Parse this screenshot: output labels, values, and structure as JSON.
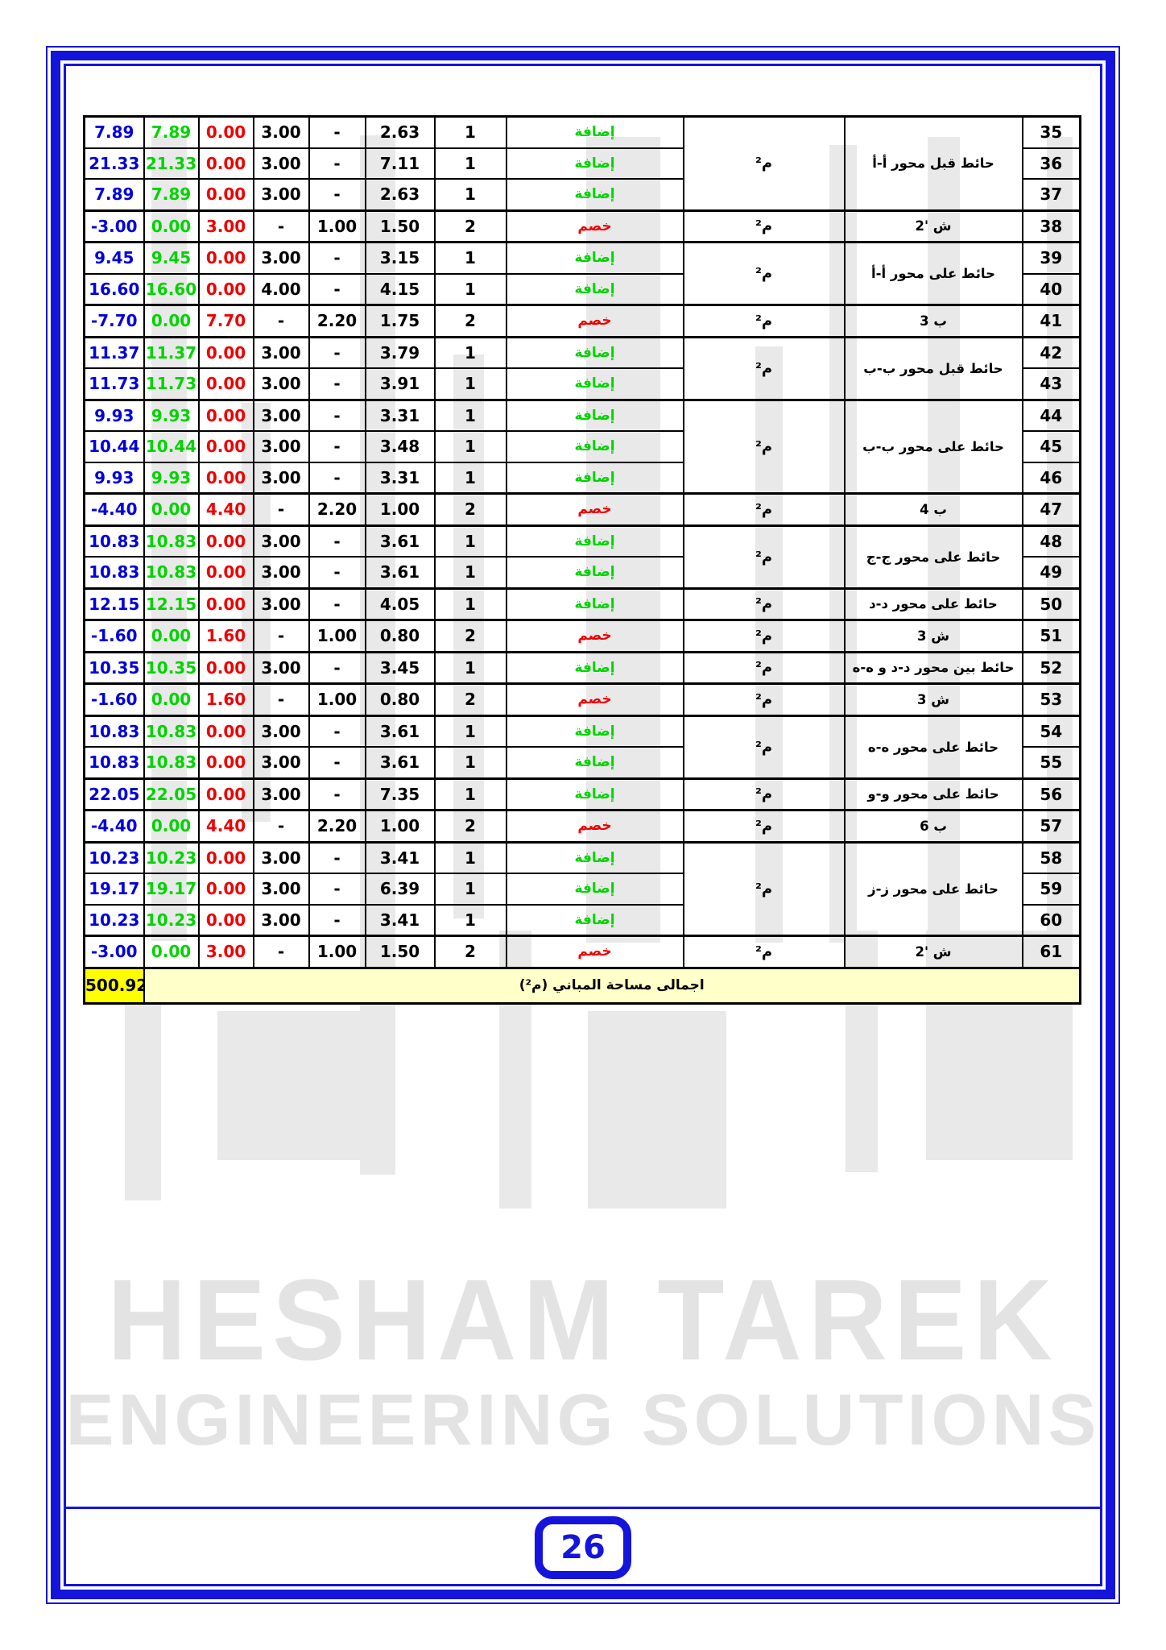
{
  "page": {
    "number": "26"
  },
  "watermark": {
    "line1": "HESHAM TAREK",
    "line2": "ENGINEERING SOLUTIONS"
  },
  "colors": {
    "frame_blue": "#1414dc",
    "net_blue": "#0000dd",
    "addition_green": "#00d400",
    "deduction_red": "#ee0000",
    "total_value_yellow": "#ffff00",
    "total_label_yellow": "#ffffc9",
    "watermark_gray": "#e9e9e9"
  },
  "table": {
    "unit_label": "م²",
    "total": {
      "value": "500.92",
      "label": "اجمالى مساحة المباني (م²)"
    },
    "rows": [
      {
        "no": "35",
        "net": "7.89",
        "add": "7.89",
        "ded": "0.00",
        "height": "3.00",
        "width": "-",
        "length": "2.63",
        "count": "1",
        "type": "إضافة",
        "type_kind": "add",
        "desc": "حائط قبل محور أ-أ",
        "span": 3
      },
      {
        "no": "36",
        "net": "21.33",
        "add": "21.33",
        "ded": "0.00",
        "height": "3.00",
        "width": "-",
        "length": "7.11",
        "count": "1",
        "type": "إضافة",
        "type_kind": "add"
      },
      {
        "no": "37",
        "net": "7.89",
        "add": "7.89",
        "ded": "0.00",
        "height": "3.00",
        "width": "-",
        "length": "2.63",
        "count": "1",
        "type": "إضافة",
        "type_kind": "add"
      },
      {
        "no": "38",
        "net": "-3.00",
        "add": "0.00",
        "ded": "3.00",
        "height": "-",
        "width": "1.00",
        "length": "1.50",
        "count": "2",
        "type": "خصم",
        "type_kind": "ded",
        "desc": "ش '2",
        "span": 1,
        "group_start": true
      },
      {
        "no": "39",
        "net": "9.45",
        "add": "9.45",
        "ded": "0.00",
        "height": "3.00",
        "width": "-",
        "length": "3.15",
        "count": "1",
        "type": "إضافة",
        "type_kind": "add",
        "desc": "حائط على محور أ-أ",
        "span": 2,
        "group_start": true
      },
      {
        "no": "40",
        "net": "16.60",
        "add": "16.60",
        "ded": "0.00",
        "height": "4.00",
        "width": "-",
        "length": "4.15",
        "count": "1",
        "type": "إضافة",
        "type_kind": "add"
      },
      {
        "no": "41",
        "net": "-7.70",
        "add": "0.00",
        "ded": "7.70",
        "height": "-",
        "width": "2.20",
        "length": "1.75",
        "count": "2",
        "type": "خصم",
        "type_kind": "ded",
        "desc": "ب 3",
        "span": 1,
        "group_start": true
      },
      {
        "no": "42",
        "net": "11.37",
        "add": "11.37",
        "ded": "0.00",
        "height": "3.00",
        "width": "-",
        "length": "3.79",
        "count": "1",
        "type": "إضافة",
        "type_kind": "add",
        "desc": "حائط قبل محور ب-ب",
        "span": 2,
        "group_start": true
      },
      {
        "no": "43",
        "net": "11.73",
        "add": "11.73",
        "ded": "0.00",
        "height": "3.00",
        "width": "-",
        "length": "3.91",
        "count": "1",
        "type": "إضافة",
        "type_kind": "add"
      },
      {
        "no": "44",
        "net": "9.93",
        "add": "9.93",
        "ded": "0.00",
        "height": "3.00",
        "width": "-",
        "length": "3.31",
        "count": "1",
        "type": "إضافة",
        "type_kind": "add",
        "desc": "حائط على محور ب-ب",
        "span": 3,
        "group_start": true
      },
      {
        "no": "45",
        "net": "10.44",
        "add": "10.44",
        "ded": "0.00",
        "height": "3.00",
        "width": "-",
        "length": "3.48",
        "count": "1",
        "type": "إضافة",
        "type_kind": "add"
      },
      {
        "no": "46",
        "net": "9.93",
        "add": "9.93",
        "ded": "0.00",
        "height": "3.00",
        "width": "-",
        "length": "3.31",
        "count": "1",
        "type": "إضافة",
        "type_kind": "add"
      },
      {
        "no": "47",
        "net": "-4.40",
        "add": "0.00",
        "ded": "4.40",
        "height": "-",
        "width": "2.20",
        "length": "1.00",
        "count": "2",
        "type": "خصم",
        "type_kind": "ded",
        "desc": "ب 4",
        "span": 1,
        "group_start": true
      },
      {
        "no": "48",
        "net": "10.83",
        "add": "10.83",
        "ded": "0.00",
        "height": "3.00",
        "width": "-",
        "length": "3.61",
        "count": "1",
        "type": "إضافة",
        "type_kind": "add",
        "desc": "حائط على محور ج-ج",
        "span": 2,
        "group_start": true
      },
      {
        "no": "49",
        "net": "10.83",
        "add": "10.83",
        "ded": "0.00",
        "height": "3.00",
        "width": "-",
        "length": "3.61",
        "count": "1",
        "type": "إضافة",
        "type_kind": "add"
      },
      {
        "no": "50",
        "net": "12.15",
        "add": "12.15",
        "ded": "0.00",
        "height": "3.00",
        "width": "-",
        "length": "4.05",
        "count": "1",
        "type": "إضافة",
        "type_kind": "add",
        "desc": "حائط على محور د-د",
        "span": 1,
        "group_start": true
      },
      {
        "no": "51",
        "net": "-1.60",
        "add": "0.00",
        "ded": "1.60",
        "height": "-",
        "width": "1.00",
        "length": "0.80",
        "count": "2",
        "type": "خصم",
        "type_kind": "ded",
        "desc": "ش 3",
        "span": 1,
        "group_start": true
      },
      {
        "no": "52",
        "net": "10.35",
        "add": "10.35",
        "ded": "0.00",
        "height": "3.00",
        "width": "-",
        "length": "3.45",
        "count": "1",
        "type": "إضافة",
        "type_kind": "add",
        "desc": "حائط بين محور د-د و ه-ه",
        "span": 1,
        "group_start": true
      },
      {
        "no": "53",
        "net": "-1.60",
        "add": "0.00",
        "ded": "1.60",
        "height": "-",
        "width": "1.00",
        "length": "0.80",
        "count": "2",
        "type": "خصم",
        "type_kind": "ded",
        "desc": "ش 3",
        "span": 1,
        "group_start": true
      },
      {
        "no": "54",
        "net": "10.83",
        "add": "10.83",
        "ded": "0.00",
        "height": "3.00",
        "width": "-",
        "length": "3.61",
        "count": "1",
        "type": "إضافة",
        "type_kind": "add",
        "desc": "حائط على محور ه-ه",
        "span": 2,
        "group_start": true
      },
      {
        "no": "55",
        "net": "10.83",
        "add": "10.83",
        "ded": "0.00",
        "height": "3.00",
        "width": "-",
        "length": "3.61",
        "count": "1",
        "type": "إضافة",
        "type_kind": "add"
      },
      {
        "no": "56",
        "net": "22.05",
        "add": "22.05",
        "ded": "0.00",
        "height": "3.00",
        "width": "-",
        "length": "7.35",
        "count": "1",
        "type": "إضافة",
        "type_kind": "add",
        "desc": "حائط على محور و-و",
        "span": 1,
        "group_start": true
      },
      {
        "no": "57",
        "net": "-4.40",
        "add": "0.00",
        "ded": "4.40",
        "height": "-",
        "width": "2.20",
        "length": "1.00",
        "count": "2",
        "type": "خصم",
        "type_kind": "ded",
        "desc": "ب 6",
        "span": 1,
        "group_start": true
      },
      {
        "no": "58",
        "net": "10.23",
        "add": "10.23",
        "ded": "0.00",
        "height": "3.00",
        "width": "-",
        "length": "3.41",
        "count": "1",
        "type": "إضافة",
        "type_kind": "add",
        "desc": "حائط على محور ز-ز",
        "span": 3,
        "group_start": true
      },
      {
        "no": "59",
        "net": "19.17",
        "add": "19.17",
        "ded": "0.00",
        "height": "3.00",
        "width": "-",
        "length": "6.39",
        "count": "1",
        "type": "إضافة",
        "type_kind": "add"
      },
      {
        "no": "60",
        "net": "10.23",
        "add": "10.23",
        "ded": "0.00",
        "height": "3.00",
        "width": "-",
        "length": "3.41",
        "count": "1",
        "type": "إضافة",
        "type_kind": "add"
      },
      {
        "no": "61",
        "net": "-3.00",
        "add": "0.00",
        "ded": "3.00",
        "height": "-",
        "width": "1.00",
        "length": "1.50",
        "count": "2",
        "type": "خصم",
        "type_kind": "ded",
        "desc": "ش '2",
        "span": 1,
        "group_start": true
      }
    ]
  }
}
